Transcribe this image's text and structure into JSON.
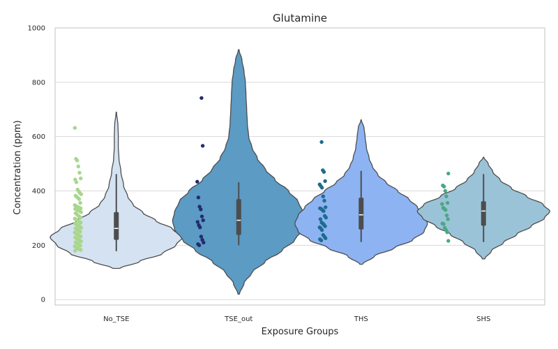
{
  "chart_data": {
    "type": "violin",
    "title": "Glutamine",
    "xlabel": "Exposure Groups",
    "ylabel": "Concentration (ppm)",
    "ylim": [
      -20,
      1000
    ],
    "yticks": [
      0,
      200,
      400,
      600,
      800,
      1000
    ],
    "grid": true,
    "categories": [
      "No_TSE",
      "TSE_out",
      "THS",
      "SHS"
    ],
    "groups": [
      {
        "name": "No_TSE",
        "violin_color": "#d4e2f2",
        "point_color": "#a8d68c",
        "kde_range": [
          115,
          690
        ],
        "box": {
          "whisker_low": 178,
          "q1": 220,
          "median": 262,
          "q3": 322,
          "whisker_high": 462
        },
        "density_profile": [
          [
            115,
            0.05
          ],
          [
            140,
            0.35
          ],
          [
            170,
            0.7
          ],
          [
            200,
            0.9
          ],
          [
            230,
            1.0
          ],
          [
            260,
            0.85
          ],
          [
            290,
            0.6
          ],
          [
            320,
            0.4
          ],
          [
            350,
            0.25
          ],
          [
            380,
            0.17
          ],
          [
            420,
            0.11
          ],
          [
            470,
            0.07
          ],
          [
            520,
            0.04
          ],
          [
            560,
            0.03
          ],
          [
            600,
            0.03
          ],
          [
            640,
            0.025
          ],
          [
            690,
            0.003
          ]
        ],
        "points": [
          632,
          518,
          512,
          490,
          467,
          446,
          442,
          432,
          405,
          398,
          392,
          388,
          382,
          378,
          374,
          370,
          356,
          348,
          344,
          342,
          340,
          338,
          336,
          334,
          332,
          330,
          328,
          325,
          322,
          318,
          314,
          310,
          306,
          302,
          298,
          295,
          292,
          289,
          286,
          283,
          280,
          277,
          274,
          271,
          268,
          265,
          262,
          259,
          256,
          253,
          250,
          247,
          244,
          241,
          238,
          235,
          232,
          229,
          226,
          223,
          220,
          217,
          214,
          211,
          208,
          205,
          202,
          199,
          196,
          193,
          190,
          187,
          185,
          183,
          180
        ]
      },
      {
        "name": "TSE_out",
        "violin_color": "#5b9bc4",
        "point_color": "#232d6e",
        "kde_range": [
          20,
          920
        ],
        "box": {
          "whisker_low": 200,
          "q1": 238,
          "median": 292,
          "q3": 370,
          "whisker_high": 432
        },
        "density_profile": [
          [
            20,
            0.01
          ],
          [
            60,
            0.08
          ],
          [
            100,
            0.2
          ],
          [
            140,
            0.4
          ],
          [
            180,
            0.65
          ],
          [
            220,
            0.85
          ],
          [
            260,
            0.97
          ],
          [
            290,
            1.0
          ],
          [
            320,
            0.97
          ],
          [
            360,
            0.9
          ],
          [
            400,
            0.75
          ],
          [
            440,
            0.55
          ],
          [
            480,
            0.4
          ],
          [
            520,
            0.28
          ],
          [
            560,
            0.2
          ],
          [
            600,
            0.15
          ],
          [
            650,
            0.13
          ],
          [
            700,
            0.12
          ],
          [
            750,
            0.11
          ],
          [
            800,
            0.1
          ],
          [
            840,
            0.08
          ],
          [
            880,
            0.05
          ],
          [
            920,
            0.005
          ]
        ],
        "points": [
          742,
          566,
          434,
          376,
          342,
          332,
          306,
          292,
          286,
          274,
          266,
          232,
          220,
          210,
          204,
          200
        ]
      },
      {
        "name": "THS",
        "violin_color": "#8db3f2",
        "point_color": "#1f6b8f",
        "kde_range": [
          130,
          662
        ],
        "box": {
          "whisker_low": 212,
          "q1": 258,
          "median": 312,
          "q3": 375,
          "whisker_high": 474
        },
        "density_profile": [
          [
            130,
            0.02
          ],
          [
            160,
            0.2
          ],
          [
            190,
            0.5
          ],
          [
            220,
            0.78
          ],
          [
            250,
            0.95
          ],
          [
            280,
            1.0
          ],
          [
            310,
            0.95
          ],
          [
            340,
            0.85
          ],
          [
            370,
            0.72
          ],
          [
            400,
            0.55
          ],
          [
            430,
            0.38
          ],
          [
            460,
            0.25
          ],
          [
            490,
            0.17
          ],
          [
            520,
            0.12
          ],
          [
            560,
            0.08
          ],
          [
            600,
            0.06
          ],
          [
            630,
            0.045
          ],
          [
            662,
            0.003
          ]
        ],
        "points": [
          580,
          476,
          470,
          436,
          424,
          418,
          412,
          380,
          364,
          340,
          336,
          334,
          330,
          326,
          308,
          302,
          296,
          284,
          280,
          276,
          270,
          266,
          262,
          256,
          238,
          232,
          226,
          222,
          218
        ]
      },
      {
        "name": "SHS",
        "violin_color": "#9bc3d8",
        "point_color": "#4aa882",
        "kde_range": [
          150,
          524
        ],
        "box": {
          "whisker_low": 212,
          "q1": 272,
          "median": 326,
          "q3": 362,
          "whisker_high": 462
        },
        "density_profile": [
          [
            150,
            0.02
          ],
          [
            180,
            0.12
          ],
          [
            210,
            0.3
          ],
          [
            240,
            0.5
          ],
          [
            270,
            0.72
          ],
          [
            300,
            0.92
          ],
          [
            325,
            1.0
          ],
          [
            350,
            0.9
          ],
          [
            380,
            0.65
          ],
          [
            410,
            0.42
          ],
          [
            440,
            0.25
          ],
          [
            470,
            0.14
          ],
          [
            500,
            0.07
          ],
          [
            524,
            0.005
          ]
        ],
        "points": [
          464,
          420,
          416,
          400,
          380,
          356,
          352,
          338,
          334,
          330,
          310,
          296,
          280,
          278,
          264,
          256,
          248,
          216
        ]
      }
    ]
  }
}
